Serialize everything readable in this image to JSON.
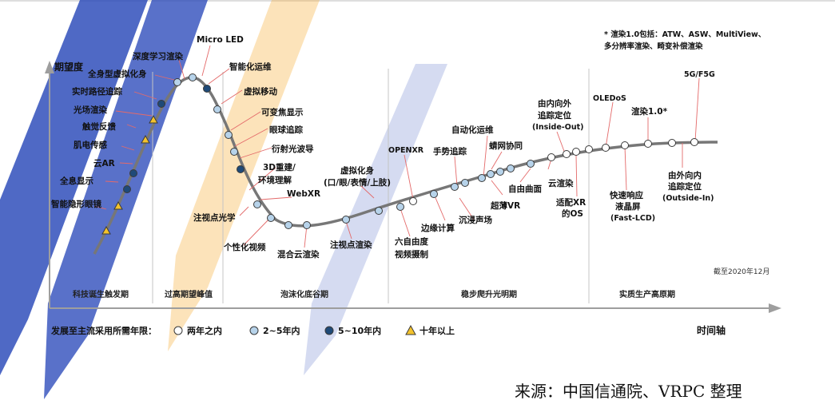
{
  "axes": {
    "y_label": "期望度",
    "x_label": "时间轴",
    "cutoff": "截至2020年12月"
  },
  "phases": [
    "科技诞生触发期",
    "过高期望峰值",
    "泡沫化底谷期",
    "稳步爬升光明期",
    "实质生产高原期"
  ],
  "note": {
    "line1": "* 渲染1.0包括：ATW、ASW、MultiView、",
    "line2": "多分辨率渲染、畸变补偿渲染"
  },
  "legend": {
    "title": "发展至主流采用所需年限：",
    "items": [
      {
        "label": "两年之内",
        "kind": "white"
      },
      {
        "label": "2~5年内",
        "kind": "light"
      },
      {
        "label": "5~10年内",
        "kind": "dark"
      },
      {
        "label": "十年以上",
        "kind": "triangle"
      }
    ]
  },
  "colors": {
    "white": "#ffffff",
    "light": "#b7d3ea",
    "dark": "#1f4a78",
    "triangle": "#f3c22c",
    "curve": "#777777",
    "leader": "#e46a6a",
    "watermark_blue": "#2747b8",
    "watermark_orange": "#f5a623"
  },
  "technologies": [
    {
      "label": "智能隐形眼镜",
      "kind": "triangle"
    },
    {
      "label": "全息显示",
      "kind": "dark"
    },
    {
      "label": "云AR",
      "kind": "dark"
    },
    {
      "label": "肌电传感",
      "kind": "triangle"
    },
    {
      "label": "触觉反馈",
      "kind": "triangle"
    },
    {
      "label": "光场渲染",
      "kind": "dark"
    },
    {
      "label": "实时路径追踪",
      "kind": "dark"
    },
    {
      "label": "全身型虚拟化身",
      "kind": "light"
    },
    {
      "label": "深度学习渲染",
      "kind": "light"
    },
    {
      "label": "Micro LED",
      "kind": "dark"
    },
    {
      "label": "智能化运维",
      "kind": "light"
    },
    {
      "label": "虚拟移动",
      "kind": "light"
    },
    {
      "label": "可变焦显示",
      "kind": "light"
    },
    {
      "label": "眼球追踪",
      "kind": "light"
    },
    {
      "label": "衍射光波导",
      "kind": "dark"
    },
    {
      "label": "3D重建/",
      "label2": "环境理解",
      "kind": "light"
    },
    {
      "label": "WebXR",
      "kind": "light"
    },
    {
      "label": "注视点光学",
      "kind": "light"
    },
    {
      "label": "个性化视频",
      "kind": "light"
    },
    {
      "label": "混合云渲染",
      "kind": "light"
    },
    {
      "label": "注视点渲染",
      "kind": "light"
    },
    {
      "label": "虚拟化身",
      "label2": "(口/眼/表情/上肢)",
      "kind": "light"
    },
    {
      "label": "OPENXR",
      "kind": "white"
    },
    {
      "label": "六自由度",
      "label2": "视频摄制",
      "kind": "light"
    },
    {
      "label": "边缘计算",
      "kind": "light"
    },
    {
      "label": "手势追踪",
      "kind": "light"
    },
    {
      "label": "沉浸声场",
      "kind": "light"
    },
    {
      "label": "自动化运维",
      "kind": "light"
    },
    {
      "label": "超薄VR",
      "kind": "light"
    },
    {
      "label": "蜻网协同",
      "kind": "light"
    },
    {
      "label": "自由曲面",
      "kind": "light"
    },
    {
      "label": "云渲染",
      "kind": "white"
    },
    {
      "label": "由内向外",
      "label2": "追踪定位",
      "label3": "(Inside-Out)",
      "kind": "white"
    },
    {
      "label": "适配XR",
      "label2": "的OS",
      "kind": "white"
    },
    {
      "label": "OLEDoS",
      "kind": "white"
    },
    {
      "label": "快速响应",
      "label2": "液晶屏",
      "label3": "(Fast-LCD)",
      "kind": "white"
    },
    {
      "label": "渲染1.0*",
      "kind": "white"
    },
    {
      "label": "由外向内",
      "label2": "追踪定位",
      "label3": "(Outside-In)",
      "kind": "white"
    },
    {
      "label": "5G/F5G",
      "kind": "white"
    }
  ],
  "source": "来源：中国信通院、VRPC 整理"
}
